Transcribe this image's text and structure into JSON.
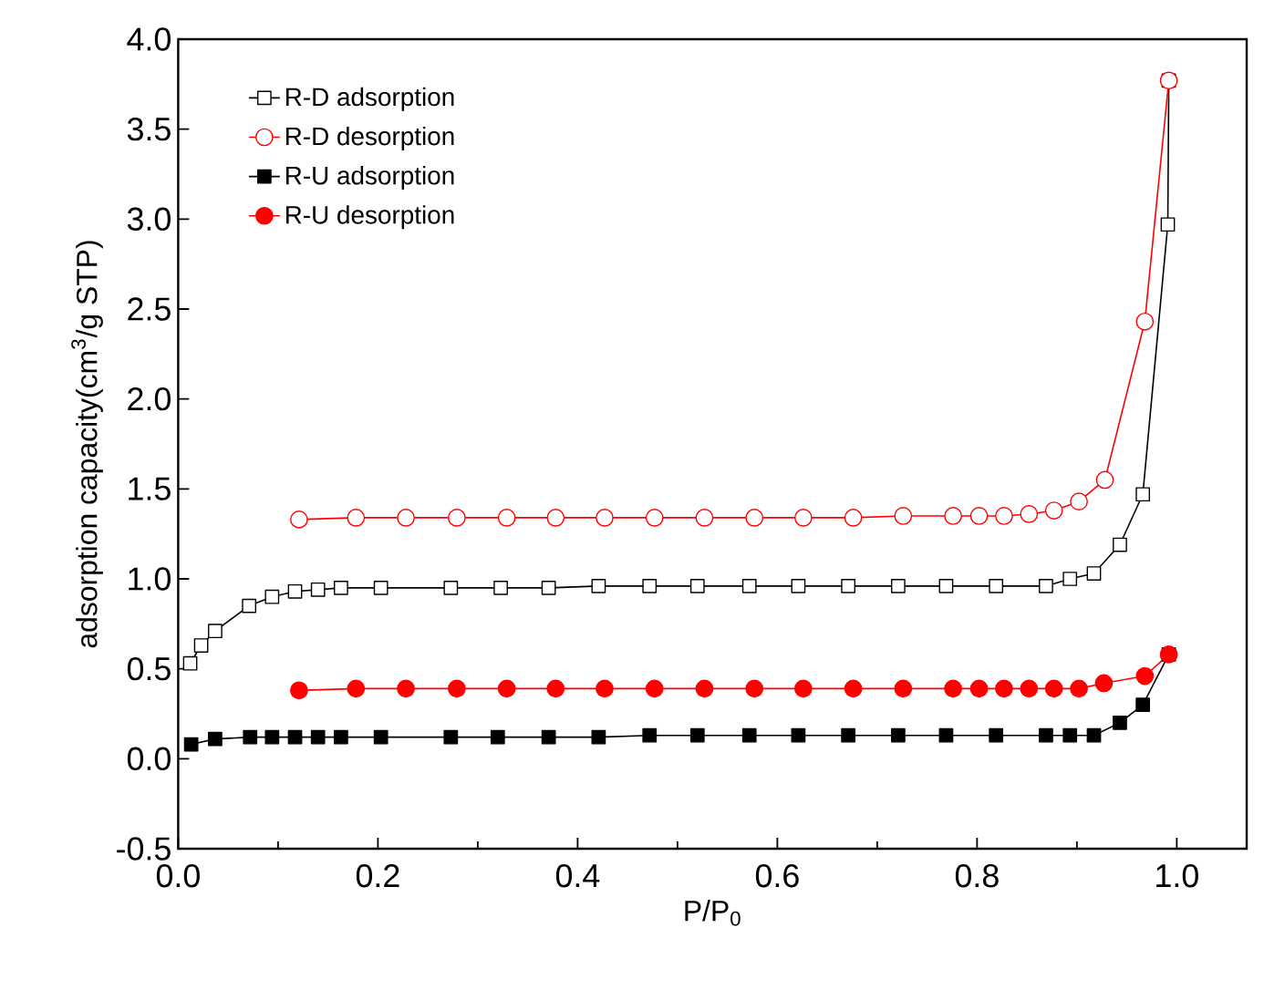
{
  "chart_data": {
    "type": "line",
    "xlabel": "P/P$_{0}$",
    "ylabel": "adsorption capacity(cm$^{3}$/g STP)",
    "xlim": [
      0,
      1.07
    ],
    "ylim": [
      -0.5,
      4.0
    ],
    "xticks": [
      {
        "value": 0,
        "label": "0.0"
      },
      {
        "value": 0.2,
        "label": "0.2"
      },
      {
        "value": 0.4,
        "label": "0.4"
      },
      {
        "value": 0.6,
        "label": "0.6"
      },
      {
        "value": 0.8,
        "label": "0.8"
      },
      {
        "value": 1.0,
        "label": "1.0"
      }
    ],
    "yticks": [
      {
        "value": -0.5,
        "label": "-0.5"
      },
      {
        "value": 0,
        "label": "0.0"
      },
      {
        "value": 0.5,
        "label": "0.5"
      },
      {
        "value": 1.0,
        "label": "1.0"
      },
      {
        "value": 1.5,
        "label": "1.5"
      },
      {
        "value": 2.0,
        "label": "2.0"
      },
      {
        "value": 2.5,
        "label": "2.5"
      },
      {
        "value": 3.0,
        "label": "3.0"
      },
      {
        "value": 3.5,
        "label": "3.5"
      },
      {
        "value": 4.0,
        "label": "4.0"
      }
    ],
    "grid": false,
    "legend": "top left",
    "series": [
      {
        "name": "R-D adsorption",
        "color": "#000000",
        "marker": "square",
        "x": [
          0.012,
          0.023,
          0.037,
          0.071,
          0.094,
          0.117,
          0.14,
          0.163,
          0.203,
          0.273,
          0.323,
          0.371,
          0.421,
          0.472,
          0.52,
          0.572,
          0.621,
          0.671,
          0.721,
          0.769,
          0.819,
          0.869,
          0.893,
          0.917,
          0.943,
          0.966,
          0.991,
          0.992
        ],
        "values": [
          0.53,
          0.63,
          0.71,
          0.85,
          0.9,
          0.93,
          0.94,
          0.95,
          0.95,
          0.95,
          0.95,
          0.95,
          0.96,
          0.96,
          0.96,
          0.96,
          0.96,
          0.96,
          0.96,
          0.96,
          0.96,
          0.96,
          1.0,
          1.03,
          1.19,
          1.47,
          2.97,
          3.77
        ]
      },
      {
        "name": "R-D desorption",
        "color": "#ff0000",
        "marker": "circle",
        "x": [
          0.121,
          0.178,
          0.228,
          0.279,
          0.329,
          0.378,
          0.427,
          0.477,
          0.527,
          0.577,
          0.626,
          0.676,
          0.726,
          0.776,
          0.802,
          0.827,
          0.852,
          0.877,
          0.902,
          0.928,
          0.968,
          0.992
        ],
        "values": [
          1.33,
          1.34,
          1.34,
          1.34,
          1.34,
          1.34,
          1.34,
          1.34,
          1.34,
          1.34,
          1.34,
          1.34,
          1.35,
          1.35,
          1.35,
          1.35,
          1.36,
          1.38,
          1.43,
          1.55,
          2.43,
          3.77
        ]
      },
      {
        "name": "R-U adsorption",
        "color": "#000000",
        "marker": "square",
        "x": [
          0.013,
          0.037,
          0.072,
          0.094,
          0.117,
          0.14,
          0.163,
          0.203,
          0.273,
          0.32,
          0.371,
          0.421,
          0.472,
          0.52,
          0.572,
          0.621,
          0.671,
          0.721,
          0.769,
          0.819,
          0.869,
          0.893,
          0.917,
          0.943,
          0.966,
          0.992
        ],
        "values": [
          0.08,
          0.11,
          0.12,
          0.12,
          0.12,
          0.12,
          0.12,
          0.12,
          0.12,
          0.12,
          0.12,
          0.12,
          0.13,
          0.13,
          0.13,
          0.13,
          0.13,
          0.13,
          0.13,
          0.13,
          0.13,
          0.13,
          0.13,
          0.2,
          0.3,
          0.58
        ]
      },
      {
        "name": "R-U desorption",
        "color": "#ff0000",
        "marker": "circle",
        "x": [
          0.121,
          0.178,
          0.228,
          0.279,
          0.329,
          0.378,
          0.427,
          0.477,
          0.527,
          0.577,
          0.626,
          0.676,
          0.726,
          0.776,
          0.802,
          0.827,
          0.852,
          0.877,
          0.902,
          0.927,
          0.968,
          0.992
        ],
        "values": [
          0.38,
          0.39,
          0.39,
          0.39,
          0.39,
          0.39,
          0.39,
          0.39,
          0.39,
          0.39,
          0.39,
          0.39,
          0.39,
          0.39,
          0.39,
          0.39,
          0.39,
          0.39,
          0.39,
          0.42,
          0.46,
          0.58
        ]
      }
    ]
  }
}
